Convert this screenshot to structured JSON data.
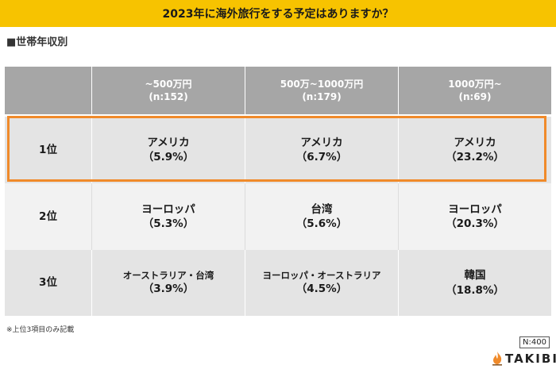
{
  "title": "2023年に海外旅行をする予定はありますか？",
  "subtitle": "■世帯年収別",
  "header": {
    "cols": [
      {
        "label": "~500万円",
        "n": "(n:152)"
      },
      {
        "label": "500万~1000万円",
        "n": "(n:179)"
      },
      {
        "label": "1000万円~",
        "n": "(n:69)"
      }
    ]
  },
  "rows": [
    {
      "rank": "1位",
      "cells": [
        {
          "name": "アメリカ",
          "pct": "（5.9%）"
        },
        {
          "name": "アメリカ",
          "pct": "（6.7%）"
        },
        {
          "name": "アメリカ",
          "pct": "（23.2%）"
        }
      ]
    },
    {
      "rank": "2位",
      "cells": [
        {
          "name": "ヨーロッパ",
          "pct": "（5.3%）"
        },
        {
          "name": "台湾",
          "pct": "（5.6%）"
        },
        {
          "name": "ヨーロッパ",
          "pct": "（20.3%）"
        }
      ]
    },
    {
      "rank": "3位",
      "cells": [
        {
          "name": "オーストラリア・台湾",
          "pct": "（3.9%）"
        },
        {
          "name": "ヨーロッパ・オーストラリア",
          "pct": "（4.5%）"
        },
        {
          "name": "韓国",
          "pct": "（18.8%）"
        }
      ]
    }
  ],
  "footnote": "※上位3項目のみ記載",
  "sample_size": "N:400",
  "logo_text": "TAKIBI",
  "colors": {
    "title_bg": "#f7c300",
    "highlight": "#f08a2a",
    "header_bg": "#a6a6a6"
  },
  "icons": {
    "logo": "flame-icon"
  }
}
